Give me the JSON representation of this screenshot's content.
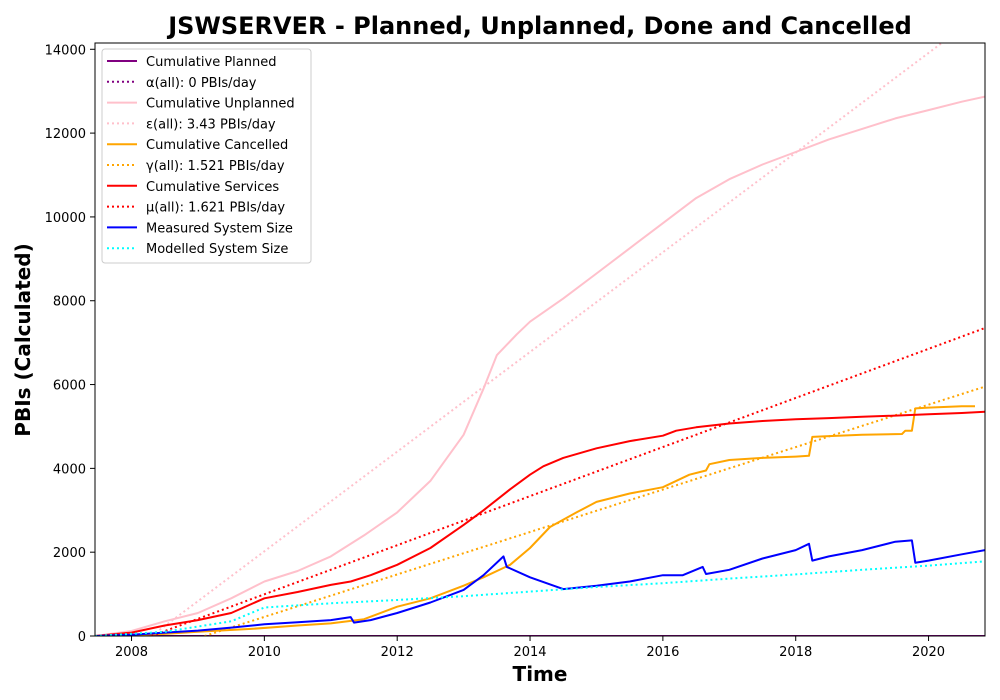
{
  "chart_data": {
    "type": "line",
    "title": "JSWSERVER - Planned, Unplanned, Done  and Cancelled",
    "xlabel": "Time",
    "ylabel": "PBIs (Calculated)",
    "xlim": [
      2007.45,
      2020.85
    ],
    "ylim": [
      0,
      14150
    ],
    "xticks": [
      2008,
      2010,
      2012,
      2014,
      2016,
      2018,
      2020
    ],
    "yticks": [
      0,
      2000,
      4000,
      6000,
      8000,
      10000,
      12000,
      14000
    ],
    "grid": false,
    "legend": "top-left",
    "series": [
      {
        "name": "Cumulative Planned",
        "color": "#800080",
        "style": "solid",
        "x": [
          2007.45,
          2020.85
        ],
        "y": [
          0,
          0
        ]
      },
      {
        "name": "α(all): 0 PBIs/day",
        "color": "#800080",
        "style": "dotted",
        "x": [
          2007.45,
          2020.85
        ],
        "y": [
          0,
          0
        ]
      },
      {
        "name": "Cumulative Unplanned",
        "color": "#ffc0cb",
        "style": "solid",
        "x": [
          2007.45,
          2008.0,
          2008.5,
          2009.0,
          2009.5,
          2010.0,
          2010.5,
          2011.0,
          2011.5,
          2012.0,
          2012.5,
          2013.0,
          2013.3,
          2013.5,
          2013.8,
          2014.0,
          2014.5,
          2015.0,
          2015.5,
          2016.0,
          2016.5,
          2017.0,
          2017.5,
          2018.0,
          2018.5,
          2019.0,
          2019.5,
          2020.0,
          2020.5,
          2020.85
        ],
        "y": [
          0,
          120,
          350,
          550,
          900,
          1300,
          1550,
          1900,
          2400,
          2950,
          3700,
          4800,
          5900,
          6700,
          7200,
          7500,
          8050,
          8650,
          9250,
          9850,
          10450,
          10900,
          11250,
          11550,
          11850,
          12100,
          12350,
          12550,
          12750,
          12870
        ]
      },
      {
        "name": "ε(all): 3.43 PBIs/day",
        "color": "#ffc0cb",
        "style": "dotted",
        "x": [
          2008.3,
          2020.2
        ],
        "y": [
          0,
          14150
        ]
      },
      {
        "name": "Cumulative Cancelled",
        "color": "#ffa500",
        "style": "solid",
        "x": [
          2007.45,
          2008.5,
          2009.0,
          2009.8,
          2010.5,
          2011.0,
          2011.5,
          2012.0,
          2012.5,
          2013.0,
          2013.3,
          2013.7,
          2014.0,
          2014.3,
          2014.7,
          2015.0,
          2015.5,
          2016.0,
          2016.4,
          2016.65,
          2016.7,
          2017.0,
          2017.5,
          2018.0,
          2018.2,
          2018.25,
          2018.5,
          2019.0,
          2019.6,
          2019.65,
          2019.75,
          2019.8,
          2020.0,
          2020.5,
          2020.7
        ],
        "y": [
          0,
          50,
          100,
          170,
          250,
          300,
          400,
          700,
          900,
          1200,
          1400,
          1700,
          2100,
          2600,
          2950,
          3200,
          3400,
          3550,
          3850,
          3950,
          4100,
          4200,
          4250,
          4280,
          4300,
          4750,
          4770,
          4800,
          4820,
          4900,
          4900,
          5430,
          5450,
          5480,
          5480
        ]
      },
      {
        "name": "γ(all): 1.521 PBIs/day",
        "color": "#ffa500",
        "style": "dotted",
        "x": [
          2009.1,
          2020.85
        ],
        "y": [
          0,
          5950
        ]
      },
      {
        "name": "Cumulative Services",
        "color": "#ff0000",
        "style": "solid",
        "x": [
          2007.45,
          2008.0,
          2008.5,
          2009.0,
          2009.5,
          2010.0,
          2010.5,
          2011.0,
          2011.3,
          2011.6,
          2012.0,
          2012.5,
          2013.0,
          2013.3,
          2013.5,
          2013.7,
          2014.0,
          2014.2,
          2014.5,
          2015.0,
          2015.5,
          2016.0,
          2016.2,
          2016.5,
          2017.0,
          2017.5,
          2018.0,
          2018.5,
          2019.0,
          2019.5,
          2020.0,
          2020.5,
          2020.85
        ],
        "y": [
          0,
          80,
          250,
          380,
          550,
          900,
          1050,
          1220,
          1300,
          1450,
          1700,
          2100,
          2650,
          3000,
          3250,
          3500,
          3850,
          4050,
          4250,
          4480,
          4650,
          4780,
          4900,
          4980,
          5070,
          5130,
          5170,
          5200,
          5230,
          5260,
          5290,
          5320,
          5350
        ]
      },
      {
        "name": "μ(all): 1.621 PBIs/day",
        "color": "#ff0000",
        "style": "dotted",
        "x": [
          2008.3,
          2020.85
        ],
        "y": [
          0,
          7350
        ]
      },
      {
        "name": "Measured System Size",
        "color": "#0000ff",
        "style": "solid",
        "x": [
          2007.45,
          2008.0,
          2008.5,
          2009.0,
          2009.5,
          2010.0,
          2010.5,
          2011.0,
          2011.3,
          2011.35,
          2011.6,
          2012.0,
          2012.5,
          2013.0,
          2013.3,
          2013.6,
          2013.65,
          2014.0,
          2014.5,
          2015.0,
          2015.5,
          2016.0,
          2016.3,
          2016.6,
          2016.65,
          2017.0,
          2017.5,
          2018.0,
          2018.2,
          2018.25,
          2018.5,
          2019.0,
          2019.5,
          2019.75,
          2019.8,
          2020.0,
          2020.5,
          2020.85
        ],
        "y": [
          0,
          30,
          80,
          130,
          200,
          280,
          330,
          380,
          450,
          320,
          380,
          550,
          800,
          1100,
          1450,
          1900,
          1650,
          1400,
          1120,
          1200,
          1300,
          1450,
          1450,
          1650,
          1480,
          1580,
          1850,
          2050,
          2200,
          1800,
          1900,
          2050,
          2250,
          2280,
          1750,
          1800,
          1950,
          2050
        ]
      },
      {
        "name": "Modelled System Size",
        "color": "#00ffff",
        "style": "dotted",
        "x": [
          2007.45,
          2008.5,
          2009.5,
          2010.0,
          2011.0,
          2012.0,
          2013.0,
          2014.0,
          2015.0,
          2016.0,
          2017.0,
          2018.0,
          2019.0,
          2020.0,
          2020.85
        ],
        "y": [
          0,
          100,
          350,
          680,
          780,
          860,
          950,
          1060,
          1170,
          1260,
          1370,
          1470,
          1580,
          1680,
          1780
        ]
      }
    ]
  }
}
